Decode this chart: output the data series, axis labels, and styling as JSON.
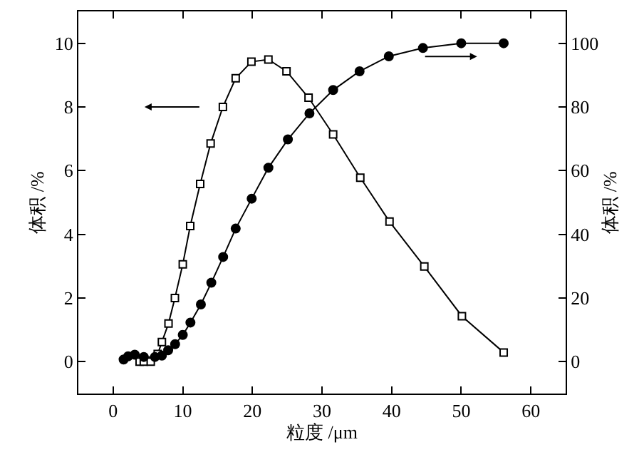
{
  "chart_data": {
    "type": "line",
    "xlabel": "粒度 /μm",
    "ylabel": "体积 /%",
    "y2label": "体积 /%",
    "xlim": [
      -5,
      65
    ],
    "xticks": [
      0,
      10,
      20,
      30,
      40,
      50,
      60
    ],
    "ylim": [
      -1,
      11
    ],
    "yticks": [
      0,
      2,
      4,
      6,
      8,
      10
    ],
    "y2lim": [
      -10,
      110
    ],
    "y2ticks": [
      0,
      20,
      40,
      60,
      80,
      100
    ],
    "grid": false,
    "series": [
      {
        "color": "#000000",
        "marker": "square",
        "x": [
          3.8,
          4.4,
          5.4,
          6.4,
          7.0,
          7.95,
          8.87,
          10.0,
          11.07,
          12.5,
          14.0,
          15.76,
          17.6,
          19.86,
          22.3,
          24.9,
          28.07,
          31.6,
          35.5,
          39.7,
          44.7,
          50.1,
          56.1
        ],
        "values": [
          0,
          0,
          0,
          0.24,
          0.62,
          1.2,
          2.0,
          3.06,
          4.26,
          5.58,
          6.85,
          8.0,
          8.9,
          9.42,
          9.49,
          9.12,
          8.29,
          7.14,
          5.78,
          4.4,
          2.99,
          1.43,
          0.29
        ]
      },
      {
        "color": "#000000",
        "marker": "circle",
        "axis": "y2",
        "x": [
          1.5,
          2.15,
          3.1,
          4.4,
          6.0,
          7.0,
          7.9,
          8.9,
          10.0,
          11.1,
          12.6,
          14.1,
          15.8,
          17.6,
          19.9,
          22.3,
          25.1,
          28.2,
          31.6,
          35.4,
          39.6,
          44.5,
          50.0,
          56.1
        ],
        "values": [
          0.7,
          1.7,
          2.2,
          1.5,
          1.5,
          1.9,
          3.6,
          5.5,
          8.4,
          12.3,
          18.0,
          24.8,
          32.9,
          41.8,
          51.2,
          60.9,
          69.8,
          78.0,
          85.3,
          91.2,
          95.9,
          98.5,
          100,
          100
        ]
      }
    ]
  }
}
